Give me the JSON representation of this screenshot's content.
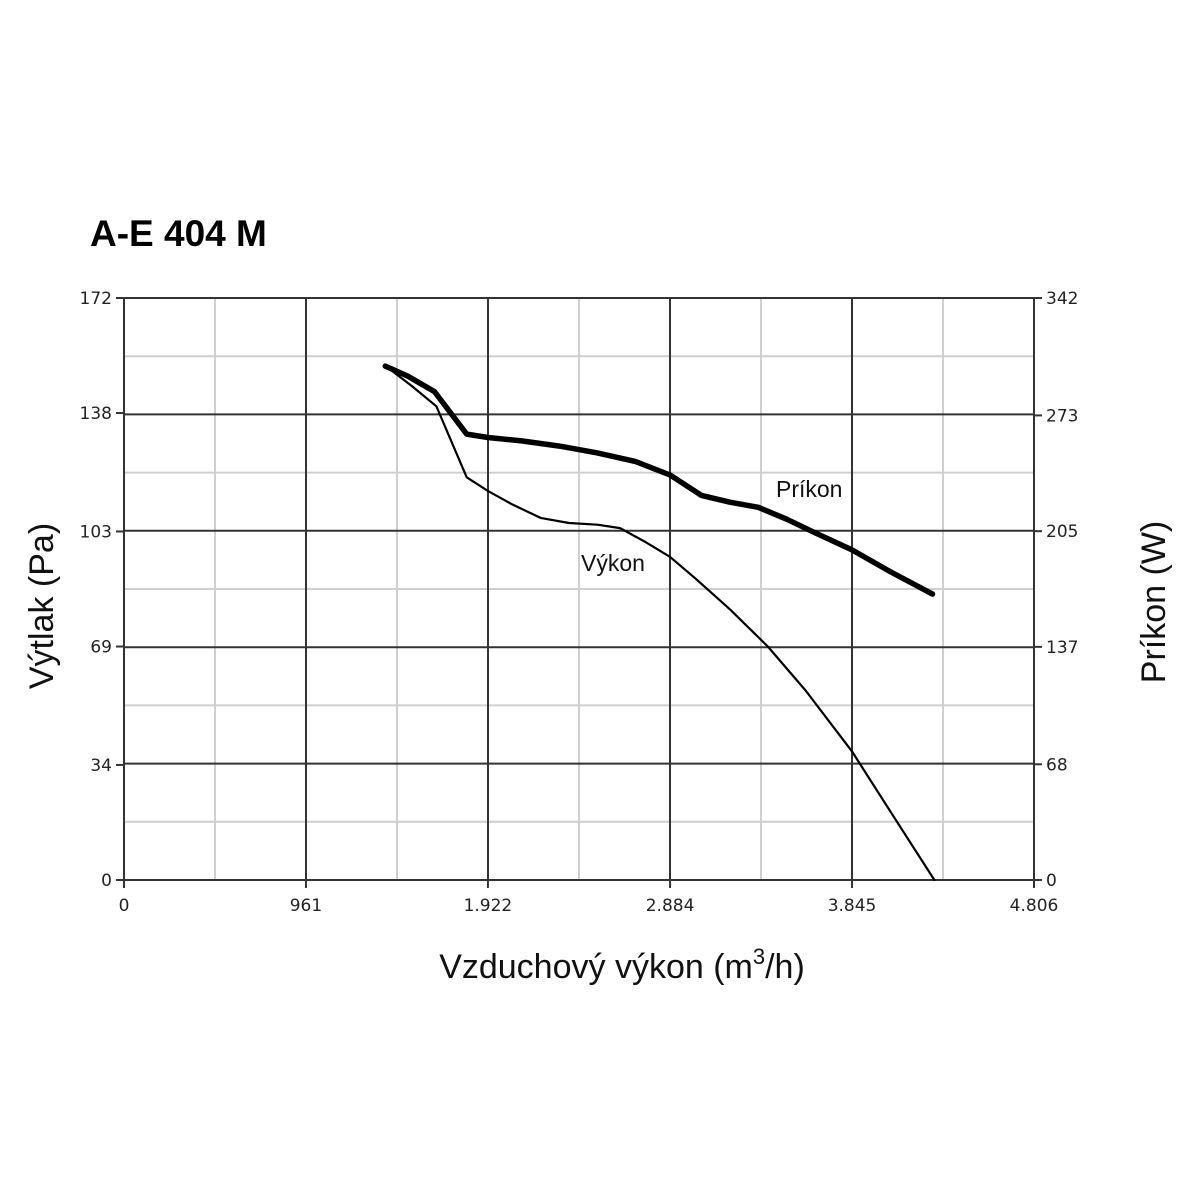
{
  "chart_data": {
    "type": "line",
    "title": "A-E 404 M",
    "xlabel": "Vzduchový výkon (m³/h)",
    "xlabel_main": "Vzduchový výkon (m",
    "xlabel_sup": "3",
    "xlabel_tail": "/h)",
    "ylabel_left": "Výtlak (Pa)",
    "ylabel_right": "Príkon (W)",
    "xlim": [
      0,
      4806
    ],
    "ylim_left": [
      0,
      172
    ],
    "ylim_right": [
      0,
      342
    ],
    "x_ticks": [
      0,
      961,
      1922,
      2884,
      3845,
      4806
    ],
    "x_tick_labels": [
      "0",
      "961",
      "1.922",
      "2.884",
      "3.845",
      "4.806"
    ],
    "y_left_ticks": [
      0,
      34,
      69,
      103,
      138,
      172
    ],
    "y_left_tick_labels": [
      "0",
      "34",
      "69",
      "103",
      "138",
      "172"
    ],
    "y_right_ticks": [
      0,
      68,
      137,
      205,
      273,
      342
    ],
    "y_right_tick_labels": [
      "0",
      "68",
      "137",
      "205",
      "273",
      "342"
    ],
    "grid": true,
    "series": [
      {
        "name": "Výkon",
        "axis": "left",
        "color": "#000000",
        "points": [
          [
            1380,
            152
          ],
          [
            1520,
            146
          ],
          [
            1650,
            140
          ],
          [
            1810,
            119
          ],
          [
            1922,
            115
          ],
          [
            2050,
            111
          ],
          [
            2200,
            107
          ],
          [
            2350,
            105.5
          ],
          [
            2500,
            105
          ],
          [
            2620,
            104
          ],
          [
            2750,
            100
          ],
          [
            2884,
            95.5
          ],
          [
            3020,
            89
          ],
          [
            3200,
            80
          ],
          [
            3400,
            69
          ],
          [
            3600,
            56
          ],
          [
            3845,
            38
          ],
          [
            4050,
            20
          ],
          [
            4280,
            0
          ]
        ]
      },
      {
        "name": "Príkon",
        "axis": "right",
        "color": "#000000",
        "points": [
          [
            1380,
            302
          ],
          [
            1500,
            296
          ],
          [
            1640,
            287
          ],
          [
            1810,
            262
          ],
          [
            1922,
            260
          ],
          [
            2100,
            258
          ],
          [
            2300,
            255
          ],
          [
            2500,
            251
          ],
          [
            2700,
            246
          ],
          [
            2884,
            238
          ],
          [
            3050,
            226
          ],
          [
            3200,
            222
          ],
          [
            3350,
            219
          ],
          [
            3500,
            212
          ],
          [
            3650,
            204
          ],
          [
            3845,
            194
          ],
          [
            4050,
            181
          ],
          [
            4270,
            168
          ]
        ]
      }
    ]
  }
}
